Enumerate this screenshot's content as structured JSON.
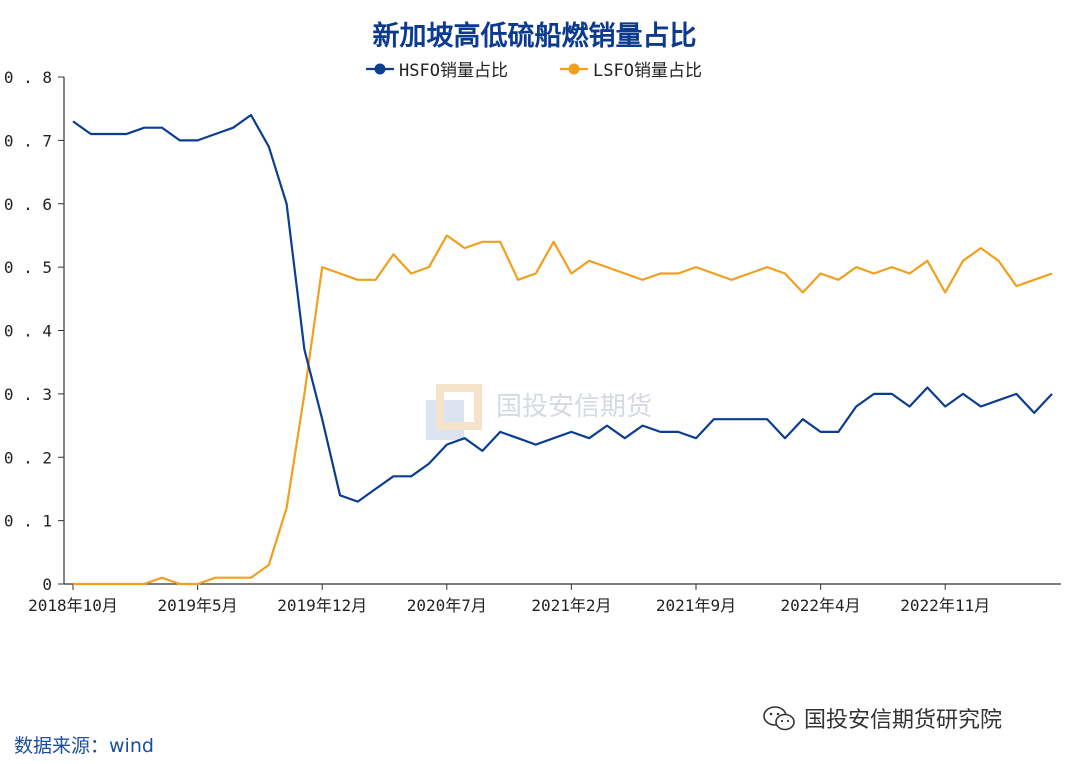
{
  "chart_data": {
    "type": "line",
    "title": "新加坡高低硫船燃销量占比",
    "xlabel": "",
    "ylabel": "",
    "ylim": [
      0,
      0.8
    ],
    "yticks": [
      "0",
      "0.1",
      "0.2",
      "0.3",
      "0.4",
      "0.5",
      "0.6",
      "0.7",
      "0.8"
    ],
    "xtick_labels": [
      "2018年10月",
      "2019年5月",
      "2019年12月",
      "2020年7月",
      "2021年2月",
      "2021年9月",
      "2022年4月",
      "2022年11月"
    ],
    "xtick_positions": [
      0,
      7,
      14,
      21,
      28,
      35,
      42,
      49
    ],
    "legend": "top-center",
    "series": [
      {
        "name": "HSFO销量占比",
        "color": "#0b3d91",
        "values": [
          0.73,
          0.71,
          0.71,
          0.71,
          0.72,
          0.72,
          0.7,
          0.7,
          0.71,
          0.72,
          0.74,
          0.69,
          0.6,
          0.37,
          0.26,
          0.14,
          0.13,
          0.15,
          0.17,
          0.17,
          0.19,
          0.22,
          0.23,
          0.21,
          0.24,
          0.23,
          0.22,
          0.23,
          0.24,
          0.23,
          0.25,
          0.23,
          0.25,
          0.24,
          0.24,
          0.23,
          0.26,
          0.26,
          0.26,
          0.26,
          0.23,
          0.26,
          0.24,
          0.24,
          0.28,
          0.3,
          0.3,
          0.28,
          0.31,
          0.28,
          0.3,
          0.28,
          0.29,
          0.3,
          0.27,
          0.3
        ]
      },
      {
        "name": "LSFO销量占比",
        "color": "#f0a01e",
        "values": [
          0.0,
          0.0,
          0.0,
          0.0,
          0.0,
          0.01,
          0.0,
          0.0,
          0.01,
          0.01,
          0.01,
          0.03,
          0.12,
          0.3,
          0.5,
          0.49,
          0.48,
          0.48,
          0.52,
          0.49,
          0.5,
          0.55,
          0.53,
          0.54,
          0.54,
          0.48,
          0.49,
          0.54,
          0.49,
          0.51,
          0.5,
          0.49,
          0.48,
          0.49,
          0.49,
          0.5,
          0.49,
          0.48,
          0.49,
          0.5,
          0.49,
          0.46,
          0.49,
          0.48,
          0.5,
          0.49,
          0.5,
          0.49,
          0.51,
          0.46,
          0.51,
          0.53,
          0.51,
          0.47,
          0.48,
          0.49
        ]
      }
    ]
  },
  "watermark": {
    "text": "国投安信期货"
  },
  "footer": {
    "source": "数据来源：wind",
    "brand": "国投安信期货研究院"
  }
}
